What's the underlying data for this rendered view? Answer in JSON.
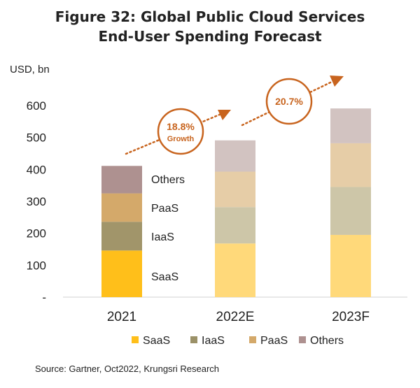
{
  "title_line1": "Figure 32: Global Public Cloud Services",
  "title_line2": "End-User Spending Forecast",
  "unit_label": "USD, bn",
  "source": "Source: Gartner, Oct2022, Krungsri Research",
  "chart_data": {
    "type": "bar",
    "stacked": true,
    "categories": [
      "2021",
      "2022E",
      "2023F"
    ],
    "ylim": [
      0,
      600
    ],
    "yticks": [
      0,
      100,
      200,
      300,
      400,
      500,
      600
    ],
    "ytick_labels": [
      "-",
      "100",
      "200",
      "300",
      "400",
      "500",
      "600"
    ],
    "series": [
      {
        "name": "SaaS",
        "values": [
          146,
          168,
          195
        ],
        "colors": [
          "#ffbf1a",
          "#ffd97a",
          "#ffd97a"
        ]
      },
      {
        "name": "IaaS",
        "values": [
          90,
          114,
          150
        ],
        "colors": [
          "#a1956a",
          "#cdc6a8",
          "#cdc6a8"
        ]
      },
      {
        "name": "PaaS",
        "values": [
          89,
          111,
          137
        ],
        "colors": [
          "#d4a96a",
          "#e6cda7",
          "#e6cda7"
        ]
      },
      {
        "name": "Others",
        "values": [
          86,
          98,
          109
        ],
        "colors": [
          "#ae9190",
          "#d2c3c1",
          "#d2c3c1"
        ]
      }
    ],
    "segment_labels": [
      "SaaS",
      "IaaS",
      "PaaS",
      "Others"
    ],
    "legend": {
      "position": "bottom",
      "entries": [
        {
          "label": "SaaS",
          "color": "#ffbf1a"
        },
        {
          "label": "IaaS",
          "color": "#9b9168"
        },
        {
          "label": "PaaS",
          "color": "#d4a96a"
        },
        {
          "label": "Others",
          "color": "#ae9190"
        }
      ]
    },
    "annotations": [
      {
        "value": "18.8%",
        "sub": "Growth",
        "color": "#c8641e"
      },
      {
        "value": "20.7%",
        "sub": "",
        "color": "#c8641e"
      }
    ],
    "grid": false
  }
}
